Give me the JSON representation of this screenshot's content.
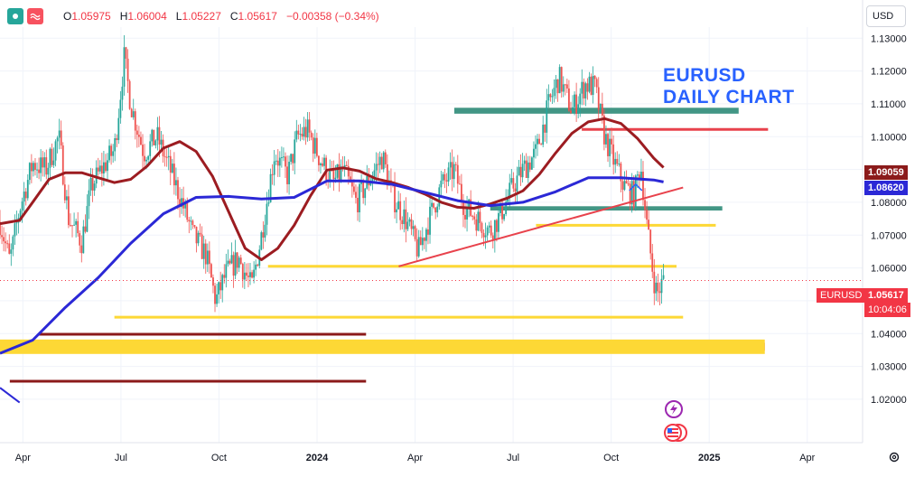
{
  "header": {
    "ohlc": {
      "open_label": "O",
      "open": "1.05975",
      "high_label": "H",
      "high": "1.06004",
      "low_label": "L",
      "low": "1.05227",
      "close_label": "C",
      "close": "1.05617",
      "change": "−0.00358 (−0.34%)"
    },
    "currency": "USD"
  },
  "colors": {
    "up": "#26a69a",
    "down": "#ef5350",
    "ma_fast": "#9c1c21",
    "ma_slow": "#2b28d6",
    "accent_yellow": "#fdd835",
    "accent_green": "#2e8b78",
    "accent_red": "#e8424c",
    "dark_red": "#8b1a1a",
    "title_blue": "#2962ff"
  },
  "title_lines": [
    "EURUSD",
    "DAILY CHART"
  ],
  "price_tags": {
    "ma_fast_value": "1.09059",
    "ma_slow_value": "1.08620",
    "symbol": "EURUSD",
    "last_price": "1.05617",
    "countdown": "10:04:06"
  },
  "chart_data": {
    "type": "candlestick",
    "symbol": "EURUSD",
    "timeframe": "daily",
    "ylim": [
      1.012,
      1.132
    ],
    "y_ticks": [
      "1.02000",
      "1.03000",
      "1.04000",
      "1.05000",
      "1.06000",
      "1.07000",
      "1.08000",
      "1.09000",
      "1.10000",
      "1.11000",
      "1.12000",
      "1.13000"
    ],
    "x_ticks": [
      {
        "label": "Apr",
        "t": 0.7
      },
      {
        "label": "Jul",
        "t": 3.7
      },
      {
        "label": "Oct",
        "t": 6.7
      },
      {
        "label": "2024",
        "t": 9.7
      },
      {
        "label": "Apr",
        "t": 12.7
      },
      {
        "label": "Jul",
        "t": 15.7
      },
      {
        "label": "Oct",
        "t": 18.7
      },
      {
        "label": "2025",
        "t": 21.7
      },
      {
        "label": "Apr",
        "t": 24.7
      }
    ],
    "xlim": [
      0,
      27.0
    ],
    "price_path": [
      [
        0.0,
        1.074
      ],
      [
        0.3,
        1.062
      ],
      [
        0.6,
        1.078
      ],
      [
        1.0,
        1.092
      ],
      [
        1.4,
        1.09
      ],
      [
        1.8,
        1.1
      ],
      [
        2.1,
        1.075
      ],
      [
        2.5,
        1.068
      ],
      [
        2.8,
        1.085
      ],
      [
        3.1,
        1.09
      ],
      [
        3.5,
        1.096
      ],
      [
        3.8,
        1.124
      ],
      [
        4.0,
        1.11
      ],
      [
        4.4,
        1.095
      ],
      [
        4.8,
        1.1
      ],
      [
        5.2,
        1.09
      ],
      [
        5.6,
        1.079
      ],
      [
        5.9,
        1.07
      ],
      [
        6.3,
        1.064
      ],
      [
        6.6,
        1.05
      ],
      [
        6.9,
        1.058
      ],
      [
        7.3,
        1.063
      ],
      [
        7.7,
        1.054
      ],
      [
        8.0,
        1.07
      ],
      [
        8.4,
        1.095
      ],
      [
        8.8,
        1.088
      ],
      [
        9.1,
        1.1
      ],
      [
        9.4,
        1.102
      ],
      [
        9.8,
        1.093
      ],
      [
        10.2,
        1.086
      ],
      [
        10.5,
        1.09
      ],
      [
        10.9,
        1.08
      ],
      [
        11.3,
        1.087
      ],
      [
        11.7,
        1.094
      ],
      [
        12.0,
        1.082
      ],
      [
        12.4,
        1.075
      ],
      [
        12.8,
        1.065
      ],
      [
        13.1,
        1.074
      ],
      [
        13.5,
        1.085
      ],
      [
        13.9,
        1.09
      ],
      [
        14.2,
        1.079
      ],
      [
        14.6,
        1.075
      ],
      [
        15.0,
        1.071
      ],
      [
        15.3,
        1.076
      ],
      [
        15.7,
        1.085
      ],
      [
        16.0,
        1.09
      ],
      [
        16.4,
        1.095
      ],
      [
        16.8,
        1.11
      ],
      [
        17.1,
        1.118
      ],
      [
        17.5,
        1.108
      ],
      [
        17.9,
        1.116
      ],
      [
        18.2,
        1.115
      ],
      [
        18.5,
        1.1
      ],
      [
        18.8,
        1.092
      ],
      [
        19.1,
        1.085
      ],
      [
        19.4,
        1.082
      ],
      [
        19.6,
        1.092
      ],
      [
        19.8,
        1.072
      ],
      [
        20.0,
        1.057
      ],
      [
        20.1,
        1.052
      ],
      [
        20.3,
        1.0562
      ]
    ],
    "series": [
      {
        "key": "ma_fast",
        "points": [
          [
            0,
            1.0735
          ],
          [
            0.6,
            1.0745
          ],
          [
            1.0,
            1.08
          ],
          [
            1.5,
            1.087
          ],
          [
            2.0,
            1.089
          ],
          [
            2.5,
            1.089
          ],
          [
            3.0,
            1.0875
          ],
          [
            3.5,
            1.086
          ],
          [
            4.0,
            1.087
          ],
          [
            4.5,
            1.091
          ],
          [
            5.0,
            1.0965
          ],
          [
            5.5,
            1.0985
          ],
          [
            6.0,
            1.0955
          ],
          [
            6.5,
            1.088
          ],
          [
            7.0,
            1.077
          ],
          [
            7.5,
            1.066
          ],
          [
            8.0,
            1.0625
          ],
          [
            8.5,
            1.066
          ],
          [
            9.0,
            1.073
          ],
          [
            9.5,
            1.082
          ],
          [
            10.0,
            1.0898
          ],
          [
            10.5,
            1.0905
          ],
          [
            11.0,
            1.0895
          ],
          [
            11.5,
            1.0872
          ],
          [
            12.0,
            1.086
          ],
          [
            12.5,
            1.0845
          ],
          [
            13.0,
            1.0825
          ],
          [
            13.5,
            1.08
          ],
          [
            14.0,
            1.0785
          ],
          [
            14.5,
            1.0782
          ],
          [
            15.0,
            1.0795
          ],
          [
            15.5,
            1.0812
          ],
          [
            16.0,
            1.0835
          ],
          [
            16.5,
            1.0885
          ],
          [
            17.0,
            1.095
          ],
          [
            17.5,
            1.101
          ],
          [
            18.0,
            1.1045
          ],
          [
            18.5,
            1.1055
          ],
          [
            19.0,
            1.104
          ],
          [
            19.5,
            1.0995
          ],
          [
            20.0,
            1.0935
          ],
          [
            20.3,
            1.0906
          ]
        ]
      },
      {
        "key": "ma_slow",
        "points": [
          [
            0,
            1.034
          ],
          [
            1.0,
            1.038
          ],
          [
            2.0,
            1.048
          ],
          [
            3.0,
            1.057
          ],
          [
            4.0,
            1.0675
          ],
          [
            5.0,
            1.0765
          ],
          [
            6.0,
            1.0815
          ],
          [
            7.0,
            1.0818
          ],
          [
            8.0,
            1.081
          ],
          [
            9.0,
            1.0815
          ],
          [
            10.0,
            1.0865
          ],
          [
            11.0,
            1.0865
          ],
          [
            12.0,
            1.0855
          ],
          [
            13.0,
            1.083
          ],
          [
            14.0,
            1.0805
          ],
          [
            15.0,
            1.079
          ],
          [
            16.0,
            1.08
          ],
          [
            17.0,
            1.0832
          ],
          [
            18.0,
            1.0875
          ],
          [
            19.0,
            1.0875
          ],
          [
            20.0,
            1.0868
          ],
          [
            20.3,
            1.0862
          ]
        ]
      }
    ],
    "drawings": [
      {
        "kind": "band",
        "color": "accent_green",
        "t1": 15.0,
        "t2": 22.1,
        "y1": 1.0775,
        "y2": 1.0788
      },
      {
        "kind": "band",
        "color": "accent_green",
        "t1": 13.9,
        "t2": 22.6,
        "y1": 1.107,
        "y2": 1.1088
      },
      {
        "kind": "band",
        "color": "accent_red",
        "t1": 0,
        "t2": 23.4,
        "y1": 1.0348,
        "y2": 1.0372
      },
      {
        "kind": "band",
        "color": "accent_yellow",
        "t1": 0,
        "t2": 23.4,
        "y1": 1.0338,
        "y2": 1.0382
      },
      {
        "kind": "hline",
        "color": "accent_red",
        "t1": 17.8,
        "t2": 23.5,
        "y": 1.1022,
        "w": 3
      },
      {
        "kind": "hline",
        "color": "accent_yellow",
        "t1": 16.4,
        "t2": 21.9,
        "y": 1.073,
        "w": 3
      },
      {
        "kind": "hline",
        "color": "accent_yellow",
        "t1": 8.2,
        "t2": 20.7,
        "y": 1.0605,
        "w": 3
      },
      {
        "kind": "hline",
        "color": "accent_yellow",
        "t1": 3.5,
        "t2": 20.9,
        "y": 1.045,
        "w": 3
      },
      {
        "kind": "hline",
        "color": "dark_red",
        "t1": 1.2,
        "t2": 11.2,
        "y": 1.0398,
        "w": 3
      },
      {
        "kind": "hline",
        "color": "dark_red",
        "t1": 0.3,
        "t2": 11.2,
        "y": 1.0255,
        "w": 3
      },
      {
        "kind": "line",
        "color": "accent_red",
        "t1": 12.2,
        "y1": 1.0605,
        "t2": 20.9,
        "y2": 1.0845,
        "w": 2
      },
      {
        "kind": "line",
        "color": "ma_slow",
        "t1": 0,
        "y1": 1.0235,
        "t2": 0.6,
        "y2": 1.019,
        "w": 2
      }
    ]
  }
}
